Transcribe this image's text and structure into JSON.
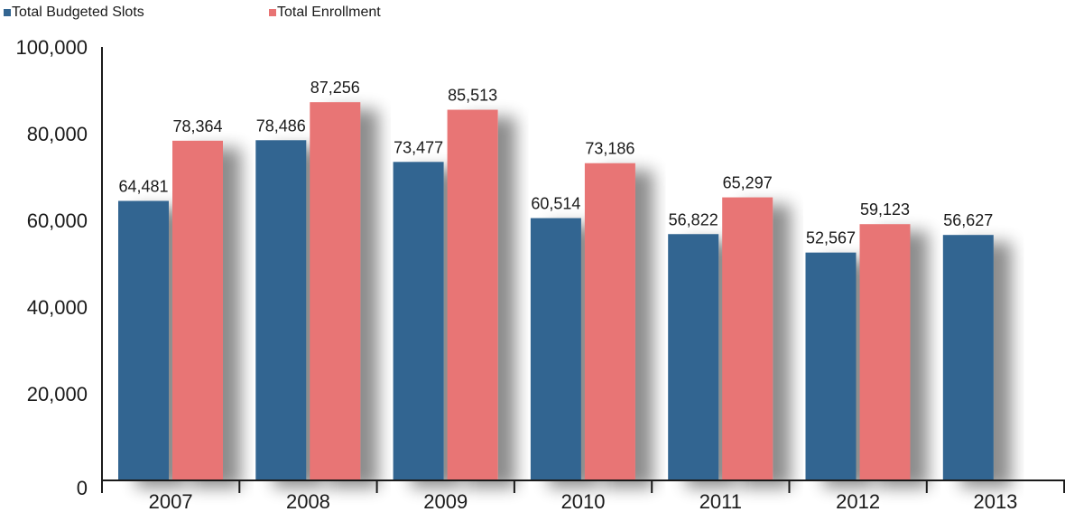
{
  "chart_data": {
    "type": "bar",
    "categories": [
      "2007",
      "2008",
      "2009",
      "2010",
      "2011",
      "2012",
      "2013"
    ],
    "series": [
      {
        "name": "Total Budgeted Slots",
        "color": "#336591",
        "values": [
          64481,
          78486,
          73477,
          60514,
          56822,
          52567,
          56627
        ],
        "labels": [
          "64,481",
          "78,486",
          "73,477",
          "60,514",
          "56,822",
          "52,567",
          "56,627"
        ]
      },
      {
        "name": "Total Enrollment",
        "color": "#e87474",
        "values": [
          78364,
          87256,
          85513,
          73186,
          65297,
          59123,
          null
        ],
        "labels": [
          "78,364",
          "87,256",
          "85,513",
          "73,186",
          "65,297",
          "59,123",
          ""
        ]
      }
    ],
    "ylim": [
      0,
      100000
    ],
    "yticks": [
      0,
      20000,
      40000,
      60000,
      80000,
      100000
    ],
    "ytick_labels": [
      "0",
      "20,000",
      "40,000",
      "60,000",
      "80,000",
      "100,000"
    ],
    "grid": true,
    "legend": "top-left"
  }
}
